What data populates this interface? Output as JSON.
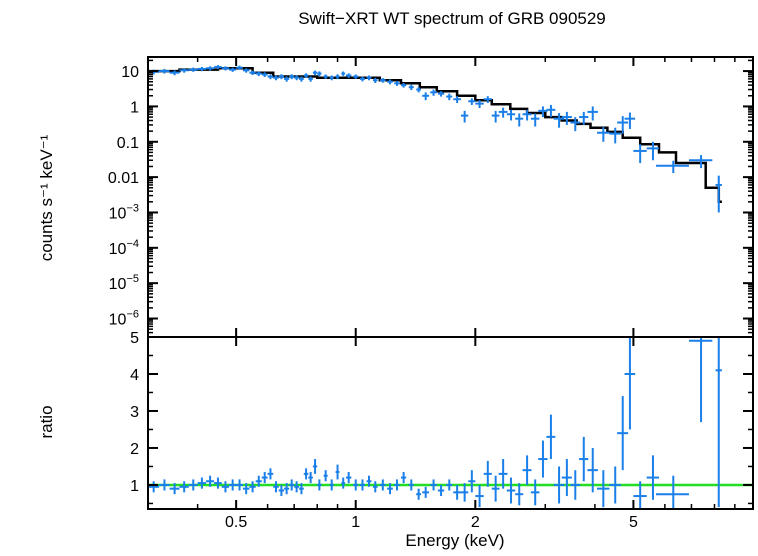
{
  "chart_data": {
    "type": "scatter",
    "title": "Swift−XRT WT spectrum of GRB 090529",
    "xlabel": "Energy (keV)",
    "x_scale": "log",
    "xlim": [
      0.3,
      10
    ],
    "x_ticks": [
      0.5,
      1,
      2,
      5
    ],
    "x_tick_labels": [
      "0.5",
      "1",
      "2",
      "5"
    ],
    "colors": {
      "data": "#1a7fe8",
      "model": "#000000",
      "unity": "#22dd22",
      "frame": "#000000"
    },
    "top_panel": {
      "ylabel": "counts s⁻¹ keV⁻¹",
      "y_scale": "log",
      "ylim": [
        3e-07,
        25
      ],
      "y_ticks": [
        10,
        1,
        0.1,
        0.01,
        0.001,
        0.0001,
        1e-05,
        1e-06
      ],
      "y_tick_labels": [
        {
          "base": "10",
          "exp": ""
        },
        {
          "base": "1",
          "exp": ""
        },
        {
          "base": "0.1",
          "exp": ""
        },
        {
          "base": "0.01",
          "exp": ""
        },
        {
          "base": "10",
          "exp": "−3"
        },
        {
          "base": "10",
          "exp": "−4"
        },
        {
          "base": "10",
          "exp": "−5"
        },
        {
          "base": "10",
          "exp": "−6"
        }
      ],
      "data_points": [
        [
          0.31,
          9.5,
          0.01,
          1.5
        ],
        [
          0.33,
          10,
          0.01,
          1.5
        ],
        [
          0.35,
          9,
          0.01,
          1.4
        ],
        [
          0.37,
          10.5,
          0.01,
          1.5
        ],
        [
          0.39,
          11,
          0.01,
          1.5
        ],
        [
          0.41,
          11.5,
          0.01,
          1.6
        ],
        [
          0.43,
          12,
          0.01,
          1.6
        ],
        [
          0.45,
          13,
          0.01,
          1.7
        ],
        [
          0.47,
          12,
          0.01,
          1.6
        ],
        [
          0.49,
          11,
          0.01,
          1.5
        ],
        [
          0.51,
          12.5,
          0.01,
          1.7
        ],
        [
          0.53,
          10.5,
          0.01,
          1.5
        ],
        [
          0.55,
          9,
          0.01,
          1.3
        ],
        [
          0.57,
          8.5,
          0.01,
          1.3
        ],
        [
          0.59,
          8,
          0.01,
          1.2
        ],
        [
          0.61,
          7,
          0.01,
          1.1
        ],
        [
          0.63,
          6.5,
          0.01,
          1.0
        ],
        [
          0.65,
          7,
          0.01,
          1.1
        ],
        [
          0.67,
          6,
          0.01,
          1.0
        ],
        [
          0.69,
          7,
          0.01,
          1.1
        ],
        [
          0.71,
          6.5,
          0.01,
          1.0
        ],
        [
          0.73,
          6,
          0.01,
          1.0
        ],
        [
          0.75,
          7.5,
          0.01,
          1.1
        ],
        [
          0.77,
          6,
          0.01,
          1.0
        ],
        [
          0.79,
          9,
          0.01,
          1.3
        ],
        [
          0.81,
          8.5,
          0.01,
          1.3
        ],
        [
          0.84,
          7,
          0.01,
          1.0
        ],
        [
          0.87,
          6.5,
          0.01,
          1.0
        ],
        [
          0.9,
          7,
          0.01,
          1.1
        ],
        [
          0.93,
          8.5,
          0.01,
          1.2
        ],
        [
          0.96,
          7.5,
          0.015,
          1.1
        ],
        [
          1.0,
          7,
          0.015,
          1.0
        ],
        [
          1.04,
          6,
          0.015,
          0.9
        ],
        [
          1.08,
          6.5,
          0.015,
          1.0
        ],
        [
          1.12,
          5.5,
          0.015,
          0.9
        ],
        [
          1.17,
          5.5,
          0.02,
          0.8
        ],
        [
          1.22,
          5,
          0.02,
          0.8
        ],
        [
          1.27,
          4.5,
          0.02,
          0.7
        ],
        [
          1.32,
          4,
          0.02,
          0.6
        ],
        [
          1.38,
          3.5,
          0.02,
          0.6
        ],
        [
          1.44,
          3,
          0.02,
          0.5
        ],
        [
          1.5,
          2,
          0.03,
          0.5
        ],
        [
          1.57,
          2.5,
          0.03,
          0.5
        ],
        [
          1.64,
          2.3,
          0.03,
          0.4
        ],
        [
          1.72,
          1.9,
          0.03,
          0.4
        ],
        [
          1.8,
          1.6,
          0.04,
          0.35
        ],
        [
          1.88,
          0.55,
          0.04,
          0.2
        ],
        [
          1.96,
          1.4,
          0.04,
          0.3
        ],
        [
          2.05,
          1.2,
          0.05,
          0.3
        ],
        [
          2.15,
          1.6,
          0.05,
          0.35
        ],
        [
          2.25,
          0.55,
          0.05,
          0.2
        ],
        [
          2.35,
          0.7,
          0.06,
          0.22
        ],
        [
          2.46,
          0.6,
          0.06,
          0.2
        ],
        [
          2.58,
          0.45,
          0.06,
          0.18
        ],
        [
          2.7,
          0.6,
          0.07,
          0.2
        ],
        [
          2.83,
          0.45,
          0.07,
          0.18
        ],
        [
          2.96,
          0.75,
          0.08,
          0.25
        ],
        [
          3.1,
          0.8,
          0.08,
          0.3
        ],
        [
          3.25,
          0.45,
          0.1,
          0.2
        ],
        [
          3.4,
          0.5,
          0.1,
          0.2
        ],
        [
          3.57,
          0.35,
          0.1,
          0.15
        ],
        [
          3.75,
          0.5,
          0.1,
          0.2
        ],
        [
          3.95,
          0.7,
          0.12,
          0.3
        ],
        [
          4.2,
          0.18,
          0.15,
          0.08
        ],
        [
          4.5,
          0.17,
          0.15,
          0.08
        ],
        [
          4.7,
          0.35,
          0.15,
          0.18
        ],
        [
          4.9,
          0.45,
          0.15,
          0.22
        ],
        [
          5.2,
          0.055,
          0.2,
          0.03
        ],
        [
          5.6,
          0.065,
          0.2,
          0.035
        ],
        [
          6.3,
          0.021,
          0.6,
          0.008
        ],
        [
          7.4,
          0.03,
          0.5,
          0.012
        ],
        [
          8.2,
          0.006,
          0.15,
          0.005
        ]
      ],
      "model_steps": [
        [
          0.3,
          10
        ],
        [
          0.36,
          11
        ],
        [
          0.45,
          12
        ],
        [
          0.55,
          9
        ],
        [
          0.62,
          7
        ],
        [
          0.8,
          6.5
        ],
        [
          1.0,
          6.5
        ],
        [
          1.15,
          5.5
        ],
        [
          1.3,
          4.5
        ],
        [
          1.45,
          3.5
        ],
        [
          1.6,
          2.7
        ],
        [
          1.8,
          2.0
        ],
        [
          2.0,
          1.5
        ],
        [
          2.2,
          1.15
        ],
        [
          2.45,
          0.85
        ],
        [
          2.7,
          0.65
        ],
        [
          3.0,
          0.5
        ],
        [
          3.3,
          0.4
        ],
        [
          3.6,
          0.32
        ],
        [
          3.9,
          0.25
        ],
        [
          4.3,
          0.19
        ],
        [
          4.7,
          0.13
        ],
        [
          5.2,
          0.085
        ],
        [
          5.8,
          0.05
        ],
        [
          6.4,
          0.025
        ],
        [
          7.6,
          0.005
        ],
        [
          8.2,
          0.002
        ],
        [
          8.35,
          0.002
        ]
      ]
    },
    "bottom_panel": {
      "ylabel": "ratio",
      "y_scale": "linear",
      "ylim": [
        0.35,
        5
      ],
      "y_ticks": [
        1,
        2,
        3,
        4,
        5
      ],
      "y_tick_labels": [
        "1",
        "2",
        "3",
        "4",
        "5"
      ],
      "unity_line": 1,
      "data_points": [
        [
          0.31,
          0.95,
          0.01,
          0.15
        ],
        [
          0.33,
          1.0,
          0.01,
          0.15
        ],
        [
          0.35,
          0.9,
          0.01,
          0.15
        ],
        [
          0.37,
          0.95,
          0.01,
          0.15
        ],
        [
          0.39,
          1.0,
          0.01,
          0.15
        ],
        [
          0.41,
          1.05,
          0.01,
          0.15
        ],
        [
          0.43,
          1.1,
          0.01,
          0.15
        ],
        [
          0.45,
          1.05,
          0.01,
          0.15
        ],
        [
          0.47,
          0.95,
          0.01,
          0.15
        ],
        [
          0.49,
          1.0,
          0.01,
          0.15
        ],
        [
          0.51,
          1.0,
          0.01,
          0.15
        ],
        [
          0.53,
          0.9,
          0.01,
          0.15
        ],
        [
          0.55,
          0.95,
          0.01,
          0.15
        ],
        [
          0.57,
          1.1,
          0.01,
          0.15
        ],
        [
          0.59,
          1.2,
          0.01,
          0.15
        ],
        [
          0.61,
          1.3,
          0.01,
          0.15
        ],
        [
          0.63,
          0.95,
          0.01,
          0.15
        ],
        [
          0.65,
          0.85,
          0.01,
          0.15
        ],
        [
          0.67,
          0.9,
          0.01,
          0.15
        ],
        [
          0.69,
          1.0,
          0.01,
          0.15
        ],
        [
          0.71,
          0.95,
          0.01,
          0.15
        ],
        [
          0.73,
          0.9,
          0.01,
          0.15
        ],
        [
          0.75,
          1.3,
          0.01,
          0.15
        ],
        [
          0.77,
          1.2,
          0.01,
          0.15
        ],
        [
          0.79,
          1.5,
          0.01,
          0.2
        ],
        [
          0.81,
          1.0,
          0.01,
          0.15
        ],
        [
          0.84,
          1.25,
          0.01,
          0.15
        ],
        [
          0.87,
          1.0,
          0.01,
          0.15
        ],
        [
          0.9,
          1.35,
          0.01,
          0.2
        ],
        [
          0.93,
          1.05,
          0.01,
          0.15
        ],
        [
          0.96,
          1.2,
          0.015,
          0.15
        ],
        [
          1.0,
          1.0,
          0.015,
          0.15
        ],
        [
          1.04,
          1.0,
          0.015,
          0.15
        ],
        [
          1.08,
          1.1,
          0.015,
          0.15
        ],
        [
          1.12,
          0.95,
          0.015,
          0.15
        ],
        [
          1.17,
          1.0,
          0.02,
          0.15
        ],
        [
          1.22,
          0.9,
          0.02,
          0.15
        ],
        [
          1.27,
          1.0,
          0.02,
          0.15
        ],
        [
          1.32,
          1.2,
          0.02,
          0.15
        ],
        [
          1.38,
          1.0,
          0.02,
          0.15
        ],
        [
          1.44,
          0.75,
          0.02,
          0.15
        ],
        [
          1.5,
          0.8,
          0.03,
          0.15
        ],
        [
          1.57,
          1.0,
          0.03,
          0.15
        ],
        [
          1.64,
          0.85,
          0.03,
          0.15
        ],
        [
          1.72,
          1.0,
          0.03,
          0.15
        ],
        [
          1.8,
          0.8,
          0.04,
          0.2
        ],
        [
          1.88,
          0.8,
          0.04,
          0.25
        ],
        [
          1.96,
          1.1,
          0.04,
          0.3
        ],
        [
          2.05,
          0.7,
          0.05,
          0.3
        ],
        [
          2.15,
          1.3,
          0.05,
          0.35
        ],
        [
          2.25,
          0.9,
          0.05,
          0.35
        ],
        [
          2.35,
          1.3,
          0.06,
          0.4
        ],
        [
          2.46,
          0.85,
          0.06,
          0.35
        ],
        [
          2.58,
          0.75,
          0.06,
          0.3
        ],
        [
          2.7,
          1.4,
          0.07,
          0.4
        ],
        [
          2.83,
          0.8,
          0.07,
          0.35
        ],
        [
          2.96,
          1.7,
          0.08,
          0.5
        ],
        [
          3.1,
          2.3,
          0.08,
          0.6
        ],
        [
          3.25,
          1.0,
          0.1,
          0.5
        ],
        [
          3.4,
          1.2,
          0.1,
          0.5
        ],
        [
          3.57,
          1.0,
          0.1,
          0.4
        ],
        [
          3.75,
          1.7,
          0.1,
          0.6
        ],
        [
          3.95,
          1.4,
          0.12,
          0.6
        ],
        [
          4.2,
          0.9,
          0.15,
          0.5
        ],
        [
          4.5,
          1.0,
          0.15,
          0.5
        ],
        [
          4.7,
          2.4,
          0.15,
          1.0
        ],
        [
          4.9,
          4.0,
          0.15,
          1.5
        ],
        [
          5.2,
          0.7,
          0.2,
          0.4
        ],
        [
          5.6,
          1.2,
          0.2,
          0.6
        ],
        [
          6.3,
          0.75,
          0.6,
          0.5
        ],
        [
          7.4,
          4.9,
          0.5,
          2.2
        ],
        [
          8.2,
          4.1,
          0.15,
          3.7
        ]
      ]
    }
  }
}
